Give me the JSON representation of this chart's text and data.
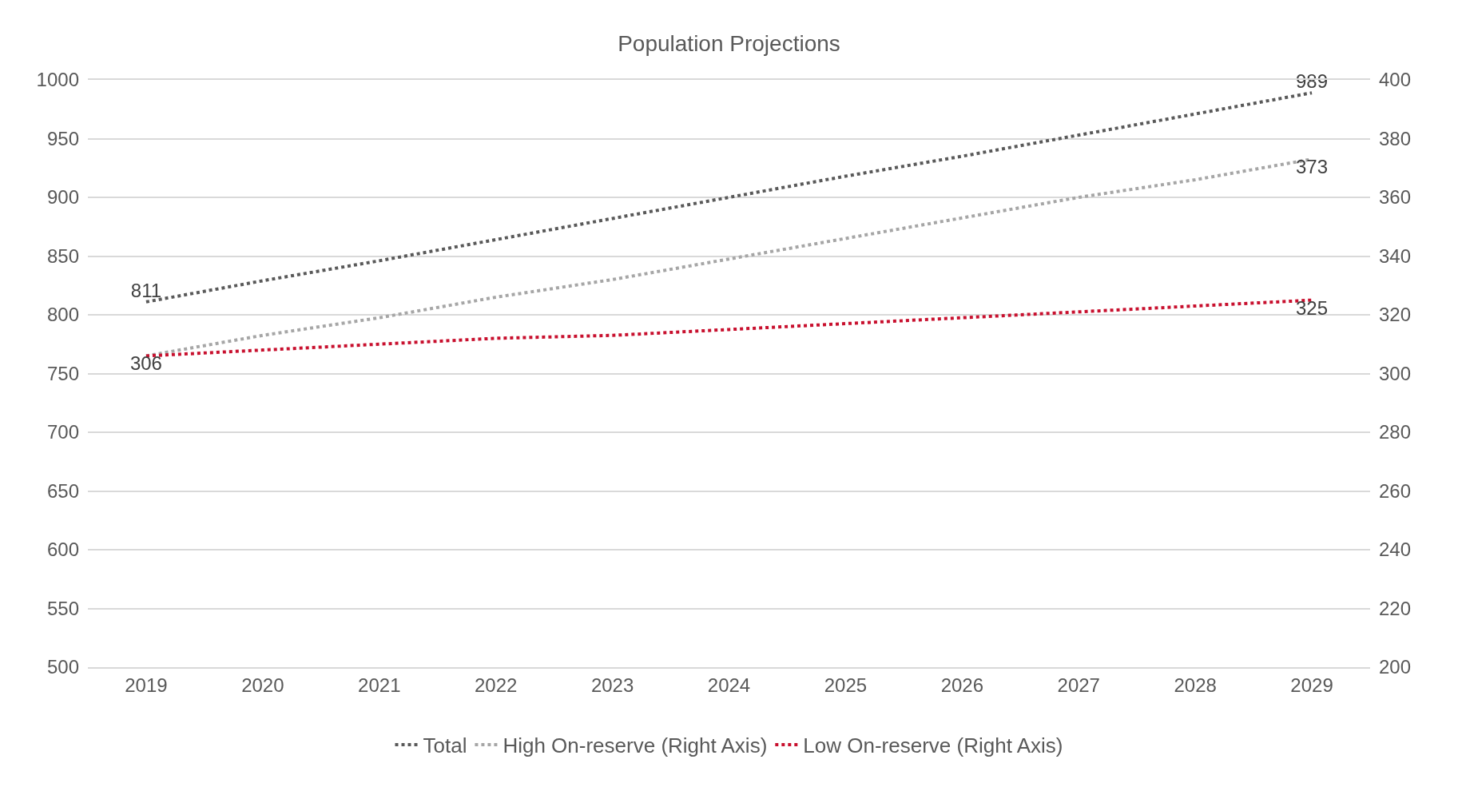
{
  "chart_data": {
    "type": "line",
    "title": "Population Projections",
    "categories": [
      "2019",
      "2020",
      "2021",
      "2022",
      "2023",
      "2024",
      "2025",
      "2026",
      "2027",
      "2028",
      "2029"
    ],
    "series": [
      {
        "name": "Total",
        "color": "#595959",
        "values": [
          811,
          829,
          846,
          864,
          882,
          900,
          918,
          935,
          953,
          971,
          989
        ],
        "value_labels": [
          "811",
          null,
          null,
          null,
          null,
          null,
          null,
          null,
          null,
          null,
          "989"
        ]
      },
      {
        "name": "High On-reserve (Right Axis)",
        "color": "#a6a6a6",
        "axis": "y2",
        "values": [
          306,
          313,
          319,
          326,
          332,
          339,
          346,
          353,
          360,
          366,
          373
        ],
        "value_labels": [
          null,
          null,
          null,
          null,
          null,
          null,
          null,
          null,
          null,
          null,
          "373"
        ]
      },
      {
        "name": "Low On-reserve (Right Axis)",
        "color": "#c8102e",
        "axis": "y2",
        "values": [
          306,
          308,
          310,
          312,
          313,
          315,
          317,
          319,
          321,
          323,
          325
        ],
        "value_labels": [
          "306",
          null,
          null,
          null,
          null,
          null,
          null,
          null,
          null,
          null,
          "325"
        ]
      }
    ],
    "ylim": [
      500,
      1000
    ],
    "yticks": [
      500,
      550,
      600,
      650,
      700,
      750,
      800,
      850,
      900,
      950,
      1000
    ],
    "y2lim": [
      200,
      400
    ],
    "y2ticks": [
      200,
      220,
      240,
      260,
      280,
      300,
      320,
      340,
      360,
      380,
      400
    ],
    "grid": "y",
    "legend": "bottom",
    "marker": "none",
    "line_style": "dotted"
  }
}
